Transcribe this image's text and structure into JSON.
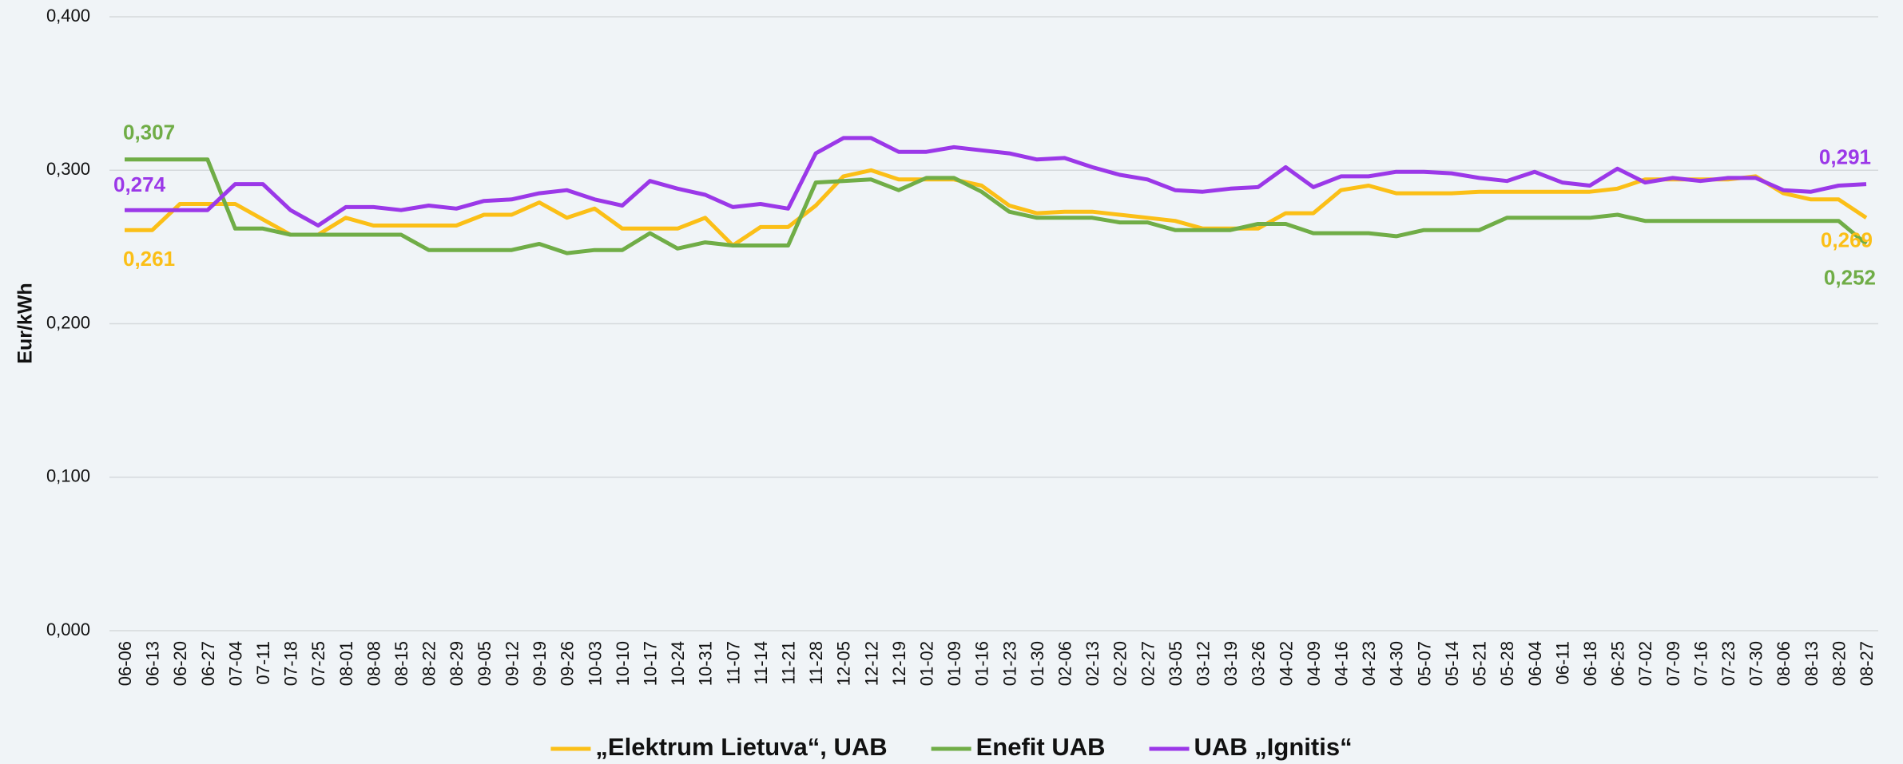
{
  "chart_data": {
    "type": "line",
    "y_label": "Eur/kWh",
    "categories": [
      "06-06",
      "06-13",
      "06-20",
      "06-27",
      "07-04",
      "07-11",
      "07-18",
      "07-25",
      "08-01",
      "08-08",
      "08-15",
      "08-22",
      "08-29",
      "09-05",
      "09-12",
      "09-19",
      "09-26",
      "10-03",
      "10-10",
      "10-17",
      "10-24",
      "10-31",
      "11-07",
      "11-14",
      "11-21",
      "11-28",
      "12-05",
      "12-12",
      "12-19",
      "01-02",
      "01-09",
      "01-16",
      "01-23",
      "01-30",
      "02-06",
      "02-13",
      "02-20",
      "02-27",
      "03-05",
      "03-12",
      "03-19",
      "03-26",
      "04-02",
      "04-09",
      "04-16",
      "04-23",
      "04-30",
      "05-07",
      "05-14",
      "05-21",
      "05-28",
      "06-04",
      "06-11",
      "06-18",
      "06-25",
      "07-02",
      "07-09",
      "07-16",
      "07-23",
      "07-30",
      "08-06",
      "08-13",
      "08-20",
      "08-27"
    ],
    "series": [
      {
        "name": "„Elektrum Lietuva“, UAB",
        "color": "#fbbf17",
        "values": [
          0.261,
          0.261,
          0.278,
          0.278,
          0.278,
          0.268,
          0.258,
          0.258,
          0.269,
          0.264,
          0.264,
          0.264,
          0.264,
          0.271,
          0.271,
          0.279,
          0.269,
          0.275,
          0.262,
          0.262,
          0.262,
          0.269,
          0.251,
          0.263,
          0.263,
          0.277,
          0.296,
          0.3,
          0.294,
          0.294,
          0.294,
          0.29,
          0.277,
          0.272,
          0.273,
          0.273,
          0.271,
          0.269,
          0.267,
          0.262,
          0.262,
          0.262,
          0.272,
          0.272,
          0.287,
          0.29,
          0.285,
          0.285,
          0.285,
          0.286,
          0.286,
          0.286,
          0.286,
          0.286,
          0.288,
          0.294,
          0.294,
          0.294,
          0.294,
          0.296,
          0.285,
          0.281,
          0.281,
          0.269
        ],
        "value_labels": [
          "0,261",
          null,
          null,
          null,
          null,
          null,
          null,
          null,
          null,
          null,
          null,
          null,
          null,
          null,
          null,
          null,
          null,
          null,
          null,
          null,
          null,
          null,
          null,
          null,
          null,
          null,
          null,
          null,
          null,
          null,
          null,
          null,
          null,
          null,
          null,
          null,
          null,
          null,
          null,
          null,
          null,
          null,
          null,
          null,
          null,
          null,
          null,
          null,
          null,
          null,
          null,
          null,
          null,
          null,
          null,
          null,
          null,
          null,
          null,
          null,
          null,
          null,
          null,
          "0,269"
        ]
      },
      {
        "name": "Enefit UAB",
        "color": "#70ad47",
        "values": [
          0.307,
          0.307,
          0.307,
          0.307,
          0.262,
          0.262,
          0.258,
          0.258,
          0.258,
          0.258,
          0.258,
          0.248,
          0.248,
          0.248,
          0.248,
          0.252,
          0.246,
          0.248,
          0.248,
          0.259,
          0.249,
          0.253,
          0.251,
          0.251,
          0.251,
          0.292,
          0.293,
          0.294,
          0.287,
          0.295,
          0.295,
          0.286,
          0.273,
          0.269,
          0.269,
          0.269,
          0.266,
          0.266,
          0.261,
          0.261,
          0.261,
          0.265,
          0.265,
          0.259,
          0.259,
          0.259,
          0.257,
          0.261,
          0.261,
          0.261,
          0.269,
          0.269,
          0.269,
          0.269,
          0.271,
          0.267,
          0.267,
          0.267,
          0.267,
          0.267,
          0.267,
          0.267,
          0.267,
          0.252
        ],
        "value_labels": [
          "0,307",
          null,
          null,
          null,
          null,
          null,
          null,
          null,
          null,
          null,
          null,
          null,
          null,
          null,
          null,
          null,
          null,
          null,
          null,
          null,
          null,
          null,
          null,
          null,
          null,
          null,
          null,
          null,
          null,
          null,
          null,
          null,
          null,
          null,
          null,
          null,
          null,
          null,
          null,
          null,
          null,
          null,
          null,
          null,
          null,
          null,
          null,
          null,
          null,
          null,
          null,
          null,
          null,
          null,
          null,
          null,
          null,
          null,
          null,
          null,
          null,
          null,
          null,
          "0,252"
        ]
      },
      {
        "name": "UAB „Ignitis“",
        "color": "#9b38e8",
        "values": [
          0.274,
          0.274,
          0.274,
          0.274,
          0.291,
          0.291,
          0.274,
          0.264,
          0.276,
          0.276,
          0.274,
          0.277,
          0.275,
          0.28,
          0.281,
          0.285,
          0.287,
          0.281,
          0.277,
          0.293,
          0.288,
          0.284,
          0.276,
          0.278,
          0.275,
          0.311,
          0.321,
          0.321,
          0.312,
          0.312,
          0.315,
          0.313,
          0.311,
          0.307,
          0.308,
          0.302,
          0.297,
          0.294,
          0.287,
          0.286,
          0.288,
          0.289,
          0.302,
          0.289,
          0.296,
          0.296,
          0.299,
          0.299,
          0.298,
          0.295,
          0.293,
          0.299,
          0.292,
          0.29,
          0.301,
          0.292,
          0.295,
          0.293,
          0.295,
          0.295,
          0.287,
          0.286,
          0.29,
          0.291
        ],
        "value_labels": [
          "0,274",
          null,
          null,
          null,
          null,
          null,
          null,
          null,
          null,
          null,
          null,
          null,
          null,
          null,
          null,
          null,
          null,
          null,
          null,
          null,
          null,
          null,
          null,
          null,
          null,
          null,
          null,
          null,
          null,
          null,
          null,
          null,
          null,
          null,
          null,
          null,
          null,
          null,
          null,
          null,
          null,
          null,
          null,
          null,
          null,
          null,
          null,
          null,
          null,
          null,
          null,
          null,
          null,
          null,
          null,
          null,
          null,
          null,
          null,
          null,
          null,
          null,
          null,
          "0,291"
        ]
      }
    ],
    "ylim": [
      0,
      0.4
    ],
    "yticks": [
      {
        "value": 0,
        "label": "0,000"
      },
      {
        "value": 0.1,
        "label": "0,100"
      },
      {
        "value": 0.2,
        "label": "0,200"
      },
      {
        "value": 0.3,
        "label": "0,300"
      },
      {
        "value": 0.4,
        "label": "0,400"
      }
    ],
    "grid": true,
    "legend": "bottom"
  }
}
